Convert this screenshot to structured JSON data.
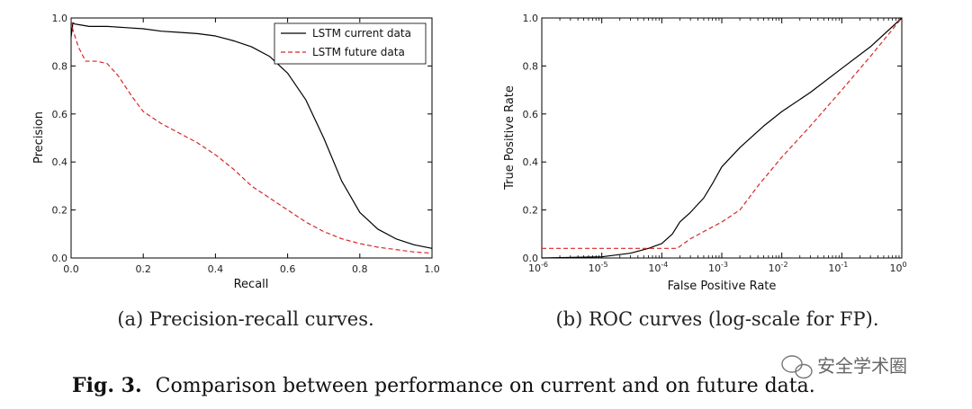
{
  "chart_data": [
    {
      "type": "line",
      "xlabel": "Recall",
      "ylabel": "Precision",
      "xlim": [
        0,
        1
      ],
      "ylim": [
        0,
        1
      ],
      "xticks": [
        "0.0",
        "0.2",
        "0.4",
        "0.6",
        "0.8",
        "1.0"
      ],
      "yticks": [
        "0.0",
        "0.2",
        "0.4",
        "0.6",
        "0.8",
        "1.0"
      ],
      "legend_position": "top-right",
      "caption": "(a) Precision-recall curves.",
      "series": [
        {
          "name": "LSTM current data",
          "style": "solid",
          "color": "#000000",
          "x": [
            0.0,
            0.005,
            0.01,
            0.03,
            0.05,
            0.1,
            0.15,
            0.2,
            0.25,
            0.3,
            0.35,
            0.4,
            0.45,
            0.5,
            0.55,
            0.6,
            0.65,
            0.7,
            0.75,
            0.8,
            0.85,
            0.9,
            0.95,
            1.0
          ],
          "y": [
            0.92,
            0.98,
            0.975,
            0.97,
            0.965,
            0.965,
            0.96,
            0.955,
            0.945,
            0.94,
            0.935,
            0.925,
            0.905,
            0.88,
            0.84,
            0.77,
            0.66,
            0.5,
            0.32,
            0.19,
            0.12,
            0.08,
            0.055,
            0.04
          ]
        },
        {
          "name": "LSTM future data",
          "style": "dashed",
          "color": "#d62728",
          "x": [
            0.0,
            0.005,
            0.02,
            0.04,
            0.07,
            0.1,
            0.13,
            0.17,
            0.2,
            0.25,
            0.3,
            0.35,
            0.4,
            0.45,
            0.5,
            0.55,
            0.6,
            0.65,
            0.7,
            0.75,
            0.8,
            0.85,
            0.9,
            0.95,
            1.0
          ],
          "y": [
            0.99,
            0.95,
            0.88,
            0.82,
            0.82,
            0.81,
            0.76,
            0.67,
            0.61,
            0.56,
            0.52,
            0.48,
            0.43,
            0.37,
            0.3,
            0.25,
            0.2,
            0.15,
            0.11,
            0.08,
            0.06,
            0.045,
            0.035,
            0.025,
            0.02
          ]
        }
      ]
    },
    {
      "type": "line",
      "xlabel": "False Positive Rate",
      "ylabel": "True Positive Rate",
      "xscale": "log",
      "xlim": [
        1e-06,
        1
      ],
      "ylim": [
        0,
        1
      ],
      "xticks": [
        {
          "base": "10",
          "exp": "-6"
        },
        {
          "base": "10",
          "exp": "-5"
        },
        {
          "base": "10",
          "exp": "-4"
        },
        {
          "base": "10",
          "exp": "-3"
        },
        {
          "base": "10",
          "exp": "-2"
        },
        {
          "base": "10",
          "exp": "-1"
        },
        {
          "base": "10",
          "exp": "0"
        }
      ],
      "yticks": [
        "0.0",
        "0.2",
        "0.4",
        "0.6",
        "0.8",
        "1.0"
      ],
      "caption": "(b) ROC curves (log-scale for FP).",
      "series": [
        {
          "name": "LSTM current data",
          "style": "solid",
          "color": "#000000",
          "x": [
            1e-06,
            1e-05,
            3e-05,
            6e-05,
            0.0001,
            0.00015,
            0.0002,
            0.0003,
            0.0005,
            0.0007,
            0.001,
            0.002,
            0.005,
            0.01,
            0.03,
            0.1,
            0.3,
            1.0
          ],
          "y": [
            0.0,
            0.005,
            0.02,
            0.04,
            0.06,
            0.1,
            0.15,
            0.19,
            0.25,
            0.31,
            0.38,
            0.46,
            0.55,
            0.61,
            0.69,
            0.79,
            0.88,
            1.0
          ]
        },
        {
          "name": "LSTM future data",
          "style": "dashed",
          "color": "#d62728",
          "x": [
            1e-06,
            5e-06,
            2e-05,
            5e-05,
            0.0001,
            0.00018,
            0.0003,
            0.0005,
            0.001,
            0.002,
            0.004,
            0.01,
            0.03,
            0.1,
            0.3,
            1.0
          ],
          "y": [
            0.04,
            0.04,
            0.04,
            0.04,
            0.04,
            0.04,
            0.08,
            0.11,
            0.15,
            0.2,
            0.3,
            0.42,
            0.55,
            0.7,
            0.84,
            1.0
          ]
        }
      ]
    }
  ],
  "figure_caption": {
    "label": "Fig. 3.",
    "text": "Comparison between performance on current and on future data."
  },
  "watermark": {
    "text": "安全学术圈"
  }
}
